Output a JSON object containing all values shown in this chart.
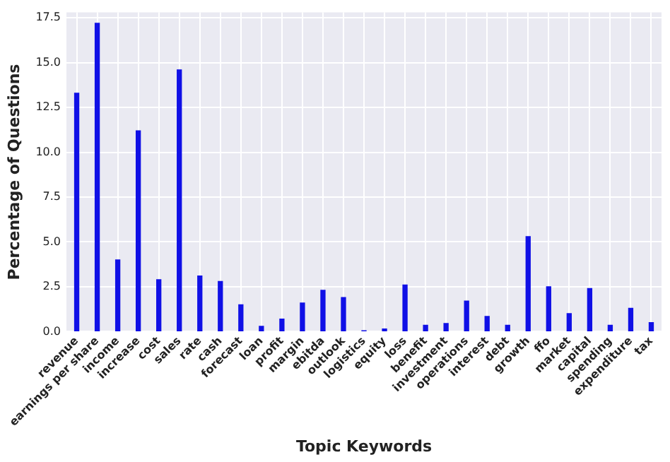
{
  "chart_data": {
    "type": "bar",
    "xlabel": "Topic Keywords",
    "ylabel": "Percentage of Questions",
    "categories": [
      "revenue",
      "earnings per share",
      "income",
      "increase",
      "cost",
      "sales",
      "rate",
      "cash",
      "forecast",
      "loan",
      "profit",
      "margin",
      "ebitda",
      "outlook",
      "logistics",
      "equity",
      "loss",
      "benefit",
      "investment",
      "operations",
      "interest",
      "debt",
      "growth",
      "ffo",
      "market",
      "capital",
      "spending",
      "expenditure",
      "tax"
    ],
    "values": [
      13.3,
      17.2,
      4.0,
      11.2,
      2.9,
      14.6,
      3.1,
      2.8,
      1.5,
      0.3,
      0.7,
      1.6,
      2.3,
      1.9,
      0.05,
      0.15,
      2.6,
      0.35,
      0.45,
      1.7,
      0.85,
      0.35,
      5.3,
      2.5,
      1.0,
      2.4,
      0.35,
      1.3,
      0.5
    ],
    "color": "#1010e6",
    "ylim": [
      0,
      17.8
    ],
    "yticks": [
      {
        "value": 0,
        "label": "0.0"
      },
      2.5,
      {
        "value": 5,
        "label": "5.0"
      },
      7.5,
      {
        "value": 10,
        "label": "10.0"
      },
      12.5,
      {
        "value": 15,
        "label": "15.0"
      },
      17.5
    ],
    "grid": true
  }
}
